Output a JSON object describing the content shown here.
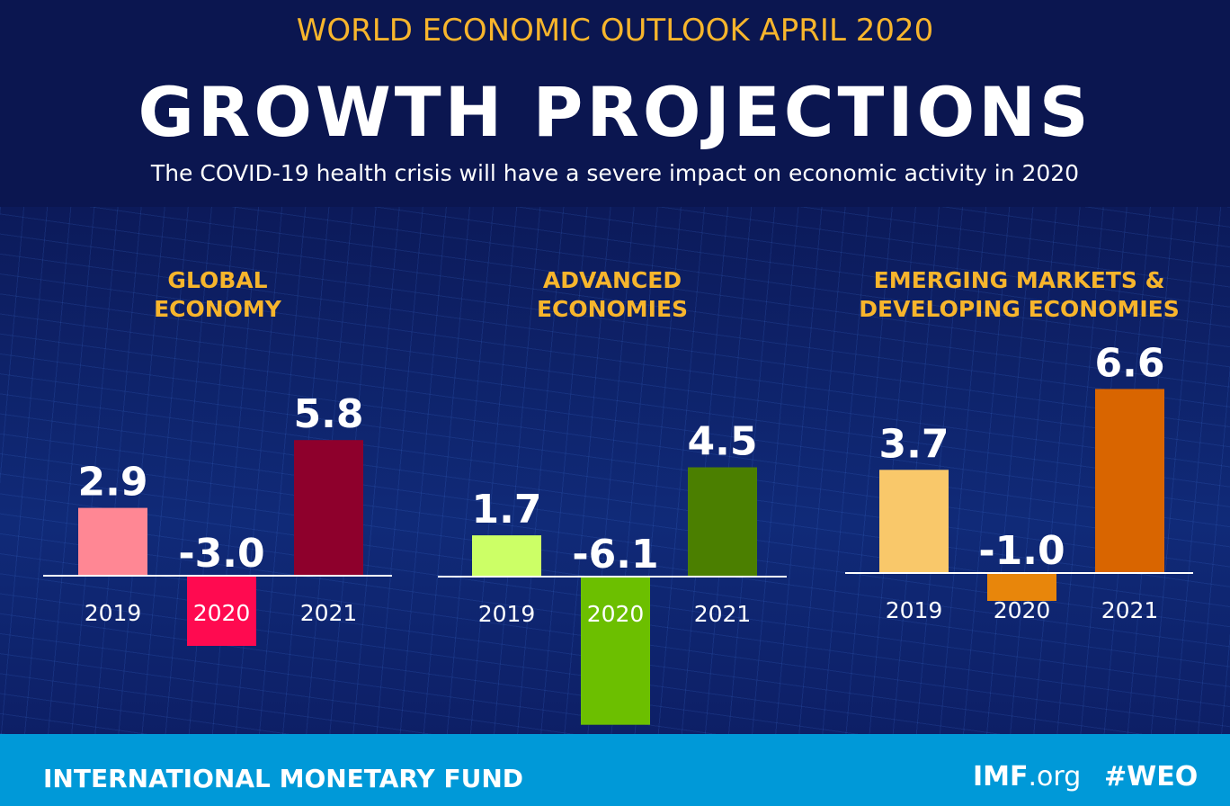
{
  "header": {
    "supertitle": "WORLD ECONOMIC OUTLOOK  APRIL 2020",
    "title": "GROWTH PROJECTIONS",
    "subtitle": "The COVID-19 health crisis will have a severe impact on economic activity in 2020"
  },
  "footer": {
    "org": "INTERNATIONAL MONETARY FUND",
    "site_bold": "IMF",
    "site_rest": ".org",
    "hashtag": "#WEO"
  },
  "chart_data": [
    {
      "type": "bar",
      "title": [
        "GLOBAL",
        "ECONOMY"
      ],
      "categories": [
        "2019",
        "2020",
        "2021"
      ],
      "values": [
        2.9,
        -3.0,
        5.8
      ],
      "labels": [
        "2.9",
        "-3.0",
        "5.8"
      ],
      "colors": [
        "#ff8794",
        "#ff0a50",
        "#8e002c"
      ]
    },
    {
      "type": "bar",
      "title": [
        "ADVANCED",
        "ECONOMIES"
      ],
      "categories": [
        "2019",
        "2020",
        "2021"
      ],
      "values": [
        1.7,
        -6.1,
        4.5
      ],
      "labels": [
        "1.7",
        "-6.1",
        "4.5"
      ],
      "colors": [
        "#ccff66",
        "#6cbf00",
        "#4b7f00"
      ]
    },
    {
      "type": "bar",
      "title": [
        "EMERGING MARKETS &",
        "DEVELOPING ECONOMIES"
      ],
      "categories": [
        "2019",
        "2020",
        "2021"
      ],
      "values": [
        3.7,
        -1.0,
        6.6
      ],
      "labels": [
        "3.7",
        "-1.0",
        "6.6"
      ],
      "colors": [
        "#f9c86a",
        "#e8860b",
        "#d96500"
      ]
    }
  ]
}
